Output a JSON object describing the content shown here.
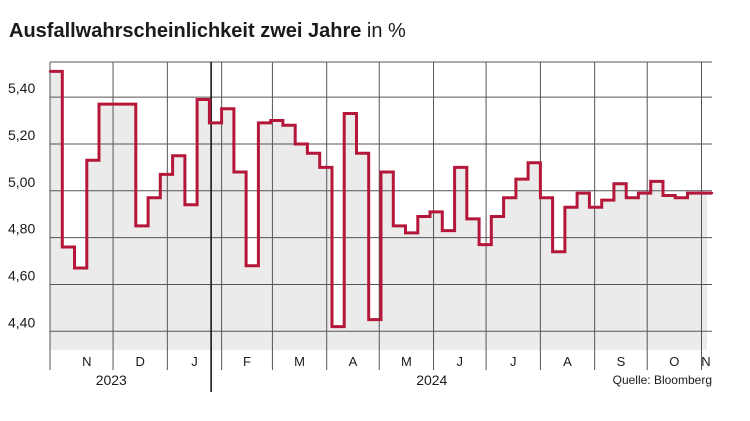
{
  "title": {
    "main": "Ausfallwahrscheinlichkeit zwei Jahre",
    "unit": "in %"
  },
  "source": "Quelle: Bloomberg",
  "colors": {
    "line": "#b5173a",
    "area": "#ebebeb",
    "grid": "#555555",
    "text": "#1a1a1a"
  },
  "chart_data": {
    "type": "area",
    "yticks": [
      4.4,
      4.6,
      4.8,
      5.0,
      5.2,
      5.4
    ],
    "ytick_labels": [
      "4,40",
      "4,60",
      "4,80",
      "5,00",
      "5,20",
      "5,40"
    ],
    "ylim": [
      4.32,
      5.55
    ],
    "xlim": [
      "2023-10-26",
      "2024-11-07"
    ],
    "months": [
      {
        "label": "N",
        "start": "2023-11-01"
      },
      {
        "label": "D",
        "start": "2023-12-01"
      },
      {
        "label": "J",
        "start": "2024-01-01"
      },
      {
        "label": "F",
        "start": "2024-02-01"
      },
      {
        "label": "M",
        "start": "2024-03-01"
      },
      {
        "label": "A",
        "start": "2024-04-01"
      },
      {
        "label": "M",
        "start": "2024-05-01"
      },
      {
        "label": "J",
        "start": "2024-06-01"
      },
      {
        "label": "J",
        "start": "2024-07-01"
      },
      {
        "label": "A",
        "start": "2024-08-01"
      },
      {
        "label": "S",
        "start": "2024-09-01"
      },
      {
        "label": "O",
        "start": "2024-10-01"
      },
      {
        "label": "N",
        "start": "2024-11-01"
      }
    ],
    "month_end": "2024-11-30",
    "years": [
      {
        "label": "2023",
        "center": "2023-11-30"
      },
      {
        "label": "2024",
        "center": "2024-05-31"
      }
    ],
    "year_divider": "2024-01-26",
    "grid": true,
    "series": [
      {
        "x": [
          "2023-10-26",
          "2023-11-02",
          "2023-11-09",
          "2023-11-16",
          "2023-11-23",
          "2023-11-30",
          "2023-12-07",
          "2023-12-14",
          "2023-12-21",
          "2023-12-28",
          "2024-01-04",
          "2024-01-11",
          "2024-01-18",
          "2024-01-25",
          "2024-02-01",
          "2024-02-08",
          "2024-02-15",
          "2024-02-22",
          "2024-02-29",
          "2024-03-07",
          "2024-03-14",
          "2024-03-21",
          "2024-03-28",
          "2024-04-04",
          "2024-04-11",
          "2024-04-18",
          "2024-04-25",
          "2024-05-02",
          "2024-05-09",
          "2024-05-16",
          "2024-05-23",
          "2024-05-30",
          "2024-06-06",
          "2024-06-13",
          "2024-06-20",
          "2024-06-27",
          "2024-07-04",
          "2024-07-11",
          "2024-07-18",
          "2024-07-25",
          "2024-08-01",
          "2024-08-08",
          "2024-08-15",
          "2024-08-22",
          "2024-08-29",
          "2024-09-05",
          "2024-09-12",
          "2024-09-19",
          "2024-09-26",
          "2024-10-03",
          "2024-10-10",
          "2024-10-17",
          "2024-10-24",
          "2024-10-31",
          "2024-11-07"
        ],
        "values": [
          5.51,
          4.76,
          4.67,
          5.13,
          5.37,
          5.37,
          5.37,
          4.85,
          4.97,
          5.07,
          5.15,
          4.94,
          5.39,
          5.29,
          5.35,
          5.08,
          4.68,
          5.29,
          5.3,
          5.28,
          5.2,
          5.16,
          5.1,
          4.42,
          5.33,
          5.16,
          4.45,
          5.08,
          4.85,
          4.82,
          4.89,
          4.91,
          4.83,
          5.1,
          4.88,
          4.77,
          4.89,
          4.97,
          5.05,
          5.12,
          4.97,
          4.74,
          4.93,
          4.99,
          4.93,
          4.96,
          5.03,
          4.97,
          4.99,
          5.04,
          4.98,
          4.97,
          4.99,
          4.99,
          4.99
        ]
      }
    ]
  }
}
